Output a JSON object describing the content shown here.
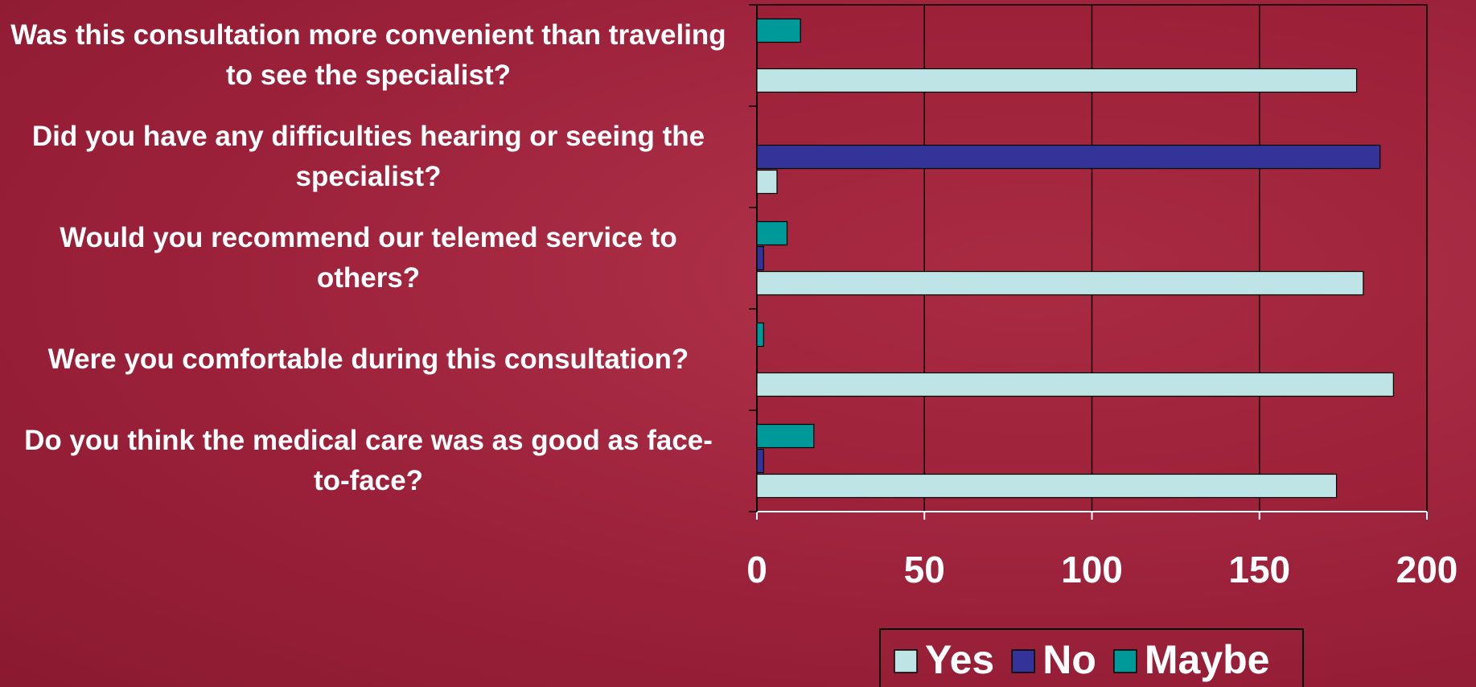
{
  "chart_data": {
    "type": "hbar",
    "categories": [
      "Was this consultation more convenient than traveling to see the specialist?",
      "Did you have any difficulties hearing or seeing the specialist?",
      "Would you recommend our telemed service to others?",
      "Were you comfortable during this consultation?",
      "Do you think the medical care was as good as face-to-face?"
    ],
    "series": [
      {
        "name": "Yes",
        "color": "#bfe4e6",
        "values": [
          179,
          6,
          181,
          190,
          173
        ]
      },
      {
        "name": "No",
        "color": "#333399",
        "values": [
          0,
          186,
          2,
          0,
          2
        ]
      },
      {
        "name": "Maybe",
        "color": "#009999",
        "values": [
          13,
          0,
          9,
          2,
          17
        ]
      }
    ],
    "xlim": [
      0,
      200
    ],
    "xticks": [
      0,
      50,
      100,
      150,
      200
    ],
    "grid": true,
    "legend": "bottom"
  }
}
